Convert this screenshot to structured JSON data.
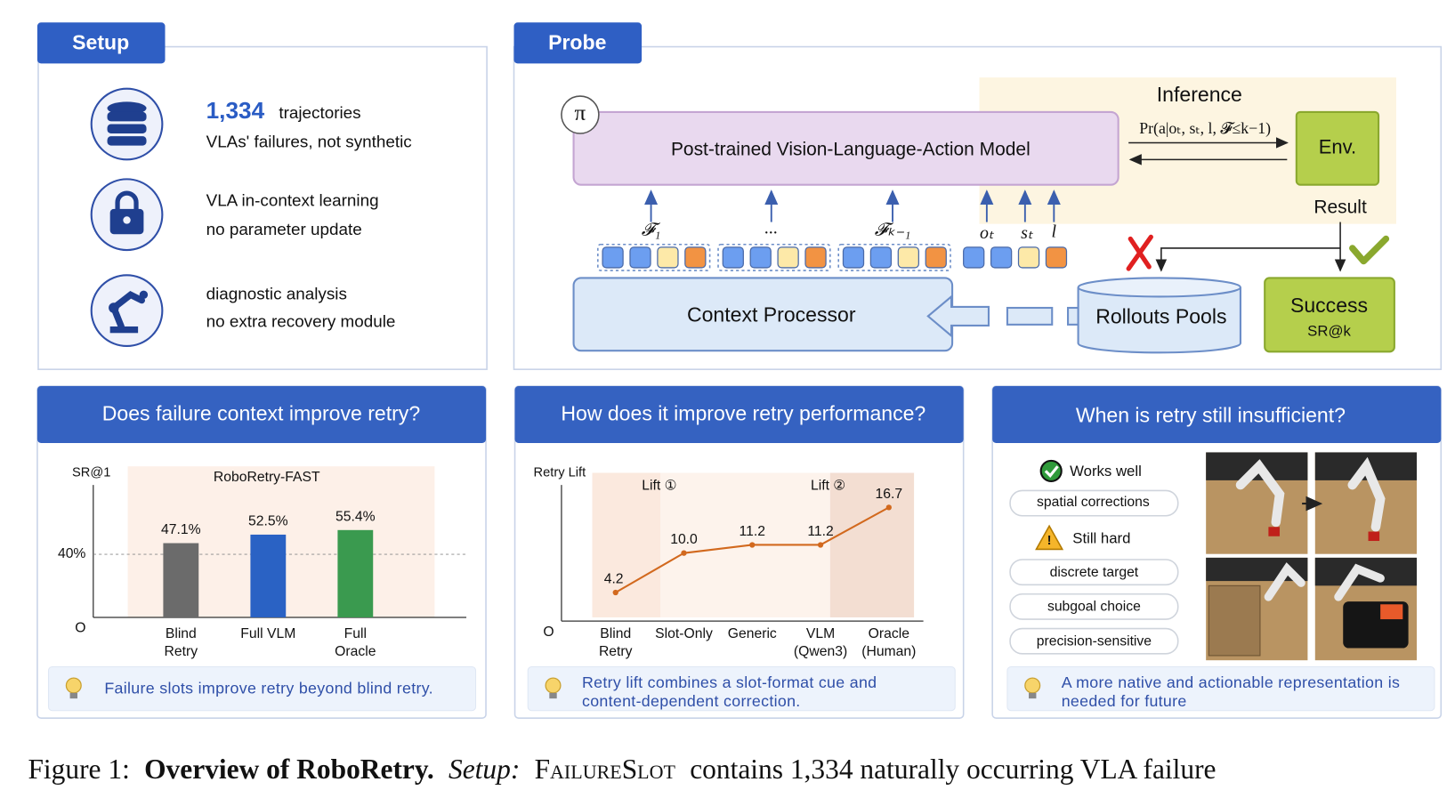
{
  "setup": {
    "title": "Setup",
    "items": [
      {
        "highlight": "1,334",
        "text": "trajectories",
        "sub": "VLAs' failures, not synthetic"
      },
      {
        "text": "VLA in-context learning",
        "sub": "no parameter update"
      },
      {
        "text": "diagnostic analysis",
        "sub": "no extra recovery module"
      }
    ]
  },
  "probe": {
    "title": "Probe",
    "inference": "Inference",
    "policy": "π",
    "model": "Post-trained Vision-Language-Action Model",
    "formula": "Pr(a|oₜ, sₜ, l, 𝓕≤k−1)",
    "env": "Env.",
    "result": "Result",
    "tokens": [
      "𝓕₁",
      "...",
      "𝓕ₖ₋₁",
      "oₜ",
      "sₜ",
      "l"
    ],
    "context_processor": "Context Processor",
    "rollouts_pools": "Rollouts Pools",
    "success": "Success",
    "success_metric": "SR@k"
  },
  "chart_data": [
    {
      "type": "bar",
      "title": "Does failure context improve retry?",
      "y_label": "SR@1",
      "subtitle": "RoboRetry-FAST",
      "categories": [
        "Blind Retry",
        "Full VLM",
        "Full Oracle"
      ],
      "values": [
        47.1,
        52.5,
        55.4
      ],
      "value_labels": [
        "47.1%",
        "52.5%",
        "55.4%"
      ],
      "colors": [
        "#6b6b6b",
        "#2a62c4",
        "#3a9a4f"
      ],
      "ylim": [
        0,
        84
      ],
      "yticks": [
        {
          "value": 0,
          "label": "O"
        },
        {
          "value": 40,
          "label": "40%"
        }
      ],
      "grid": true,
      "tip": [
        "Failure slots improve retry beyond blind retry."
      ]
    },
    {
      "type": "line",
      "title": "How does it improve retry performance?",
      "y_label": "Retry Lift",
      "annotations": [
        "Lift ①",
        "Lift ②"
      ],
      "categories": [
        "Blind Retry",
        "Slot-Only",
        "Generic",
        "VLM (Qwen3)",
        "Oracle (Human)"
      ],
      "values": [
        4.2,
        10,
        11.2,
        11.2,
        16.7
      ],
      "value_labels": [
        "4.2",
        "10.0",
        "11.2",
        "11.2",
        "16.7"
      ],
      "color": "#d2691e",
      "ylim": [
        0,
        20
      ],
      "yticks": [
        {
          "value": 0,
          "label": "O"
        }
      ],
      "grid": false,
      "tip": [
        "Retry lift combines a slot-format cue and",
        "content-dependent correction."
      ]
    }
  ],
  "insufficient": {
    "title": "When is retry still insufficient?",
    "works_well": "Works well",
    "works_items": [
      "spatial corrections"
    ],
    "still_hard": "Still hard",
    "hard_items": [
      "discrete target",
      "subgoal choice",
      "precision-sensitive"
    ],
    "tip": [
      "A more native and actionable representation is",
      "needed for future"
    ]
  },
  "caption": {
    "label": "Figure 1:",
    "bold": "Overview of RoboRetry.",
    "italic": "Setup:",
    "dataset": "FailureSlot",
    "text": "contains 1,334 naturally occurring VLA failure"
  }
}
